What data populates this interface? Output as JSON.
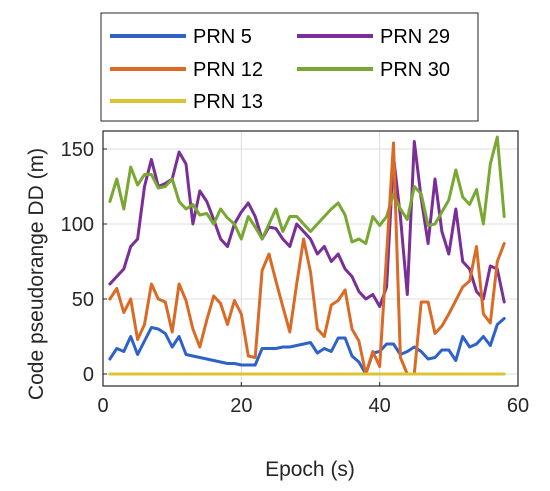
{
  "chart_data": {
    "type": "line",
    "xlabel": "Epoch (s)",
    "ylabel": "Code pseudorange DD (m)",
    "xlim": [
      0,
      60
    ],
    "ylim": [
      -8,
      162
    ],
    "xticks": [
      0,
      20,
      40,
      60
    ],
    "yticks": [
      0,
      50,
      100,
      150
    ],
    "grid": true,
    "legend": {
      "position": "top",
      "columns": 2
    },
    "x": [
      1,
      2,
      3,
      4,
      5,
      6,
      7,
      8,
      9,
      10,
      11,
      12,
      13,
      14,
      15,
      16,
      17,
      18,
      19,
      20,
      21,
      22,
      23,
      24,
      25,
      26,
      27,
      28,
      29,
      30,
      31,
      32,
      33,
      34,
      35,
      36,
      37,
      38,
      39,
      40,
      41,
      42,
      43,
      44,
      45,
      46,
      47,
      48,
      49,
      50,
      51,
      52,
      53,
      54,
      55,
      56,
      57,
      58
    ],
    "series": [
      {
        "name": "PRN 5",
        "color": "#2e62c8",
        "values": [
          10,
          17,
          15,
          25,
          13,
          22,
          31,
          30,
          27,
          18,
          25,
          13,
          12,
          11,
          10,
          9,
          8,
          7,
          7,
          6,
          6,
          6,
          17,
          17,
          17,
          18,
          18,
          19,
          20,
          21,
          14,
          17,
          15,
          24,
          24,
          12,
          8,
          0,
          14,
          15,
          20,
          20,
          13,
          15,
          18,
          15,
          10,
          11,
          16,
          16,
          9,
          25,
          18,
          20,
          25,
          19,
          33,
          37
        ]
      },
      {
        "name": "PRN 12",
        "color": "#d96b27",
        "values": [
          50,
          57,
          41,
          50,
          23,
          33,
          60,
          50,
          48,
          28,
          60,
          49,
          30,
          18,
          36,
          52,
          47,
          33,
          49,
          40,
          12,
          11,
          69,
          80,
          62,
          45,
          28,
          60,
          90,
          68,
          30,
          25,
          46,
          49,
          56,
          30,
          22,
          0,
          15,
          5,
          80,
          154,
          11,
          0,
          0,
          48,
          48,
          27,
          32,
          40,
          49,
          58,
          62,
          85,
          40,
          34,
          75,
          87
        ]
      },
      {
        "name": "PRN 13",
        "color": "#dcc534",
        "values": [
          0,
          0,
          0,
          0,
          0,
          0,
          0,
          0,
          0,
          0,
          0,
          0,
          0,
          0,
          0,
          0,
          0,
          0,
          0,
          0,
          0,
          0,
          0,
          0,
          0,
          0,
          0,
          0,
          0,
          0,
          0,
          0,
          0,
          0,
          0,
          0,
          0,
          0,
          0,
          0,
          0,
          0,
          0,
          0,
          0,
          0,
          0,
          0,
          0,
          0,
          0,
          0,
          0,
          0,
          0,
          0,
          0,
          0
        ]
      },
      {
        "name": "PRN 29",
        "color": "#7a2e98",
        "values": [
          60,
          65,
          70,
          85,
          90,
          125,
          143,
          125,
          127,
          130,
          148,
          140,
          100,
          122,
          115,
          103,
          90,
          85,
          100,
          108,
          114,
          105,
          90,
          98,
          97,
          90,
          85,
          100,
          95,
          90,
          80,
          85,
          75,
          80,
          70,
          65,
          55,
          50,
          53,
          45,
          58,
          145,
          105,
          53,
          155,
          117,
          87,
          130,
          95,
          80,
          110,
          75,
          70,
          55,
          50,
          72,
          70,
          48
        ]
      },
      {
        "name": "PRN 30",
        "color": "#78a832",
        "values": [
          115,
          130,
          110,
          138,
          126,
          133,
          133,
          124,
          125,
          130,
          115,
          110,
          113,
          106,
          107,
          100,
          110,
          104,
          100,
          90,
          105,
          98,
          90,
          100,
          110,
          95,
          105,
          105,
          100,
          95,
          100,
          105,
          110,
          114,
          106,
          88,
          90,
          87,
          105,
          99,
          105,
          120,
          110,
          103,
          125,
          120,
          99,
          100,
          108,
          116,
          136,
          118,
          113,
          123,
          100,
          140,
          158,
          105
        ]
      }
    ]
  }
}
